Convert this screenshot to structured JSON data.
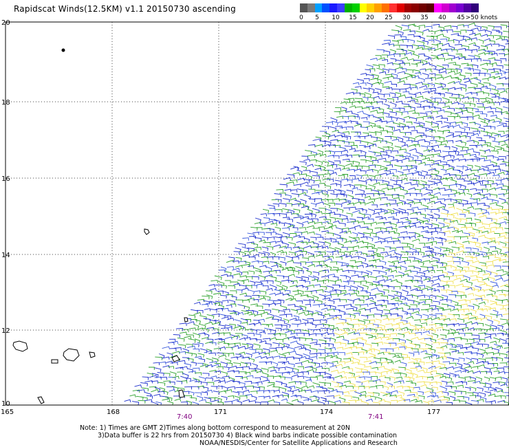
{
  "title": "Rapidscat Winds(12.5KM) v1.1 20150730 ascending",
  "legend": {
    "colors": [
      "#555555",
      "#7a7a7a",
      "#00a0ff",
      "#0050ff",
      "#1a1aff",
      "#3c3cff",
      "#00b000",
      "#00d000",
      "#ffff00",
      "#ffd000",
      "#ffa000",
      "#ff7000",
      "#ff3030",
      "#e00000",
      "#a00000",
      "#8a0000",
      "#700000",
      "#5a0000",
      "#ff00ff",
      "#d000d0",
      "#a000d0",
      "#7800d0",
      "#5000a0",
      "#30007a"
    ],
    "ticks": [
      "0",
      "5",
      "10",
      "15",
      "20",
      "25",
      "30",
      "35",
      "40",
      "45",
      "",
      ">50 knots"
    ]
  },
  "map": {
    "lat_labels": [
      "20",
      "18",
      "16",
      "14",
      "12",
      "10"
    ],
    "lon_labels": [
      "165",
      "168",
      "171",
      "174",
      "177"
    ],
    "time_labels": [
      "7:40",
      "7:41"
    ]
  },
  "notes": {
    "line1": "Note: 1) Times are GMT 2)Times along bottom correspond to measurement at 20N",
    "line2": "3)Data buffer is 22 hrs from 20150730 4) Black wind barbs indicate possible contamination",
    "line3": "NOAA/NESDIS/Center for Satellite Applications and Research"
  }
}
